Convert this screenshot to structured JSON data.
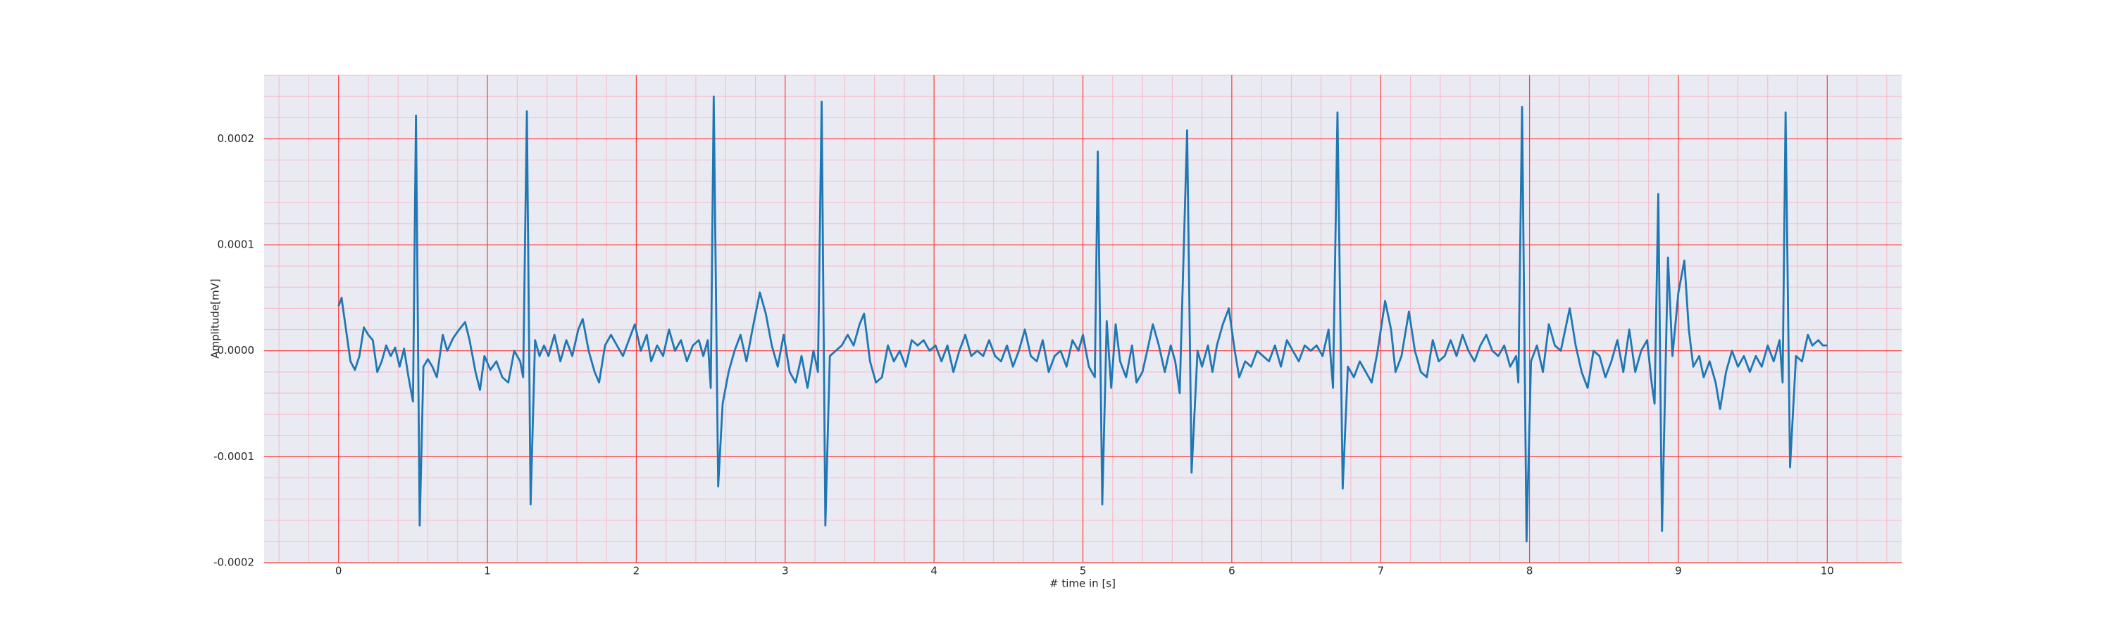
{
  "chart_data": {
    "type": "line",
    "xlabel": "# time in [s]",
    "ylabel": "Amplitude[mV]",
    "color": "#1f77b4",
    "background": "#eaeaf2",
    "grid": true,
    "grid_color": "#ff3b3b",
    "minor_grid": true,
    "minor_grid_color": "#f7b8c6",
    "minor_divisions": 5,
    "xlim": [
      -0.5,
      10.5
    ],
    "xticks": [
      0,
      1,
      2,
      3,
      4,
      5,
      6,
      7,
      8,
      9,
      10
    ],
    "ylim": [
      -0.0002,
      0.00026
    ],
    "yticks": [
      -0.0002,
      -0.0001,
      {
        "value": 0,
        "label": "0.0000"
      },
      0.0001,
      0.0002
    ],
    "x": [
      0,
      0.02,
      0.05,
      0.08,
      0.11,
      0.14,
      0.17,
      0.2,
      0.23,
      0.26,
      0.29,
      0.32,
      0.35,
      0.38,
      0.41,
      0.44,
      0.47,
      0.5,
      0.52,
      0.545,
      0.57,
      0.6,
      0.63,
      0.66,
      0.7,
      0.73,
      0.77,
      0.81,
      0.85,
      0.88,
      0.92,
      0.95,
      0.98,
      1.02,
      1.06,
      1.1,
      1.14,
      1.18,
      1.22,
      1.24,
      1.265,
      1.29,
      1.32,
      1.35,
      1.38,
      1.41,
      1.45,
      1.49,
      1.53,
      1.57,
      1.61,
      1.64,
      1.68,
      1.72,
      1.75,
      1.79,
      1.83,
      1.87,
      1.91,
      1.95,
      1.99,
      2.03,
      2.07,
      2.1,
      2.14,
      2.18,
      2.22,
      2.26,
      2.3,
      2.34,
      2.38,
      2.42,
      2.45,
      2.48,
      2.5,
      2.52,
      2.55,
      2.58,
      2.62,
      2.66,
      2.7,
      2.74,
      2.78,
      2.83,
      2.87,
      2.91,
      2.95,
      2.99,
      3.03,
      3.07,
      3.11,
      3.15,
      3.19,
      3.22,
      3.245,
      3.27,
      3.3,
      3.34,
      3.38,
      3.42,
      3.46,
      3.5,
      3.53,
      3.57,
      3.61,
      3.65,
      3.69,
      3.73,
      3.77,
      3.81,
      3.85,
      3.89,
      3.93,
      3.97,
      4.01,
      4.05,
      4.09,
      4.13,
      4.17,
      4.21,
      4.25,
      4.29,
      4.33,
      4.37,
      4.41,
      4.45,
      4.49,
      4.53,
      4.57,
      4.61,
      4.65,
      4.69,
      4.73,
      4.77,
      4.81,
      4.85,
      4.89,
      4.93,
      4.97,
      5.0,
      5.04,
      5.08,
      5.1,
      5.13,
      5.16,
      5.19,
      5.22,
      5.25,
      5.29,
      5.33,
      5.36,
      5.4,
      5.44,
      5.47,
      5.51,
      5.55,
      5.59,
      5.62,
      5.65,
      5.7,
      5.73,
      5.77,
      5.8,
      5.84,
      5.87,
      5.9,
      5.94,
      5.98,
      6.02,
      6.05,
      6.09,
      6.13,
      6.17,
      6.21,
      6.25,
      6.29,
      6.33,
      6.37,
      6.41,
      6.45,
      6.49,
      6.53,
      6.57,
      6.61,
      6.65,
      6.68,
      6.71,
      6.745,
      6.78,
      6.82,
      6.86,
      6.9,
      6.94,
      6.98,
      7.03,
      7.07,
      7.1,
      7.14,
      7.19,
      7.23,
      7.27,
      7.31,
      7.35,
      7.39,
      7.43,
      7.47,
      7.51,
      7.55,
      7.59,
      7.63,
      7.67,
      7.71,
      7.75,
      7.79,
      7.83,
      7.87,
      7.91,
      7.925,
      7.95,
      7.98,
      8.01,
      8.05,
      8.09,
      8.13,
      8.17,
      8.21,
      8.24,
      8.27,
      8.31,
      8.35,
      8.39,
      8.43,
      8.47,
      8.51,
      8.55,
      8.59,
      8.63,
      8.67,
      8.71,
      8.75,
      8.79,
      8.82,
      8.84,
      8.865,
      8.89,
      8.93,
      8.96,
      9.0,
      9.04,
      9.07,
      9.1,
      9.14,
      9.17,
      9.21,
      9.25,
      9.28,
      9.32,
      9.36,
      9.4,
      9.44,
      9.48,
      9.52,
      9.56,
      9.6,
      9.64,
      9.68,
      9.7,
      9.72,
      9.75,
      9.79,
      9.83,
      9.87,
      9.9,
      9.94,
      9.97,
      10.0
    ],
    "values": [
      4.2e-05,
      5e-05,
      2e-05,
      -1e-05,
      -1.8e-05,
      -5e-06,
      2.2e-05,
      1.5e-05,
      1e-05,
      -2e-05,
      -1e-05,
      5e-06,
      -5e-06,
      3e-06,
      -1.5e-05,
      2e-06,
      -2.5e-05,
      -4.8e-05,
      0.000222,
      -0.000165,
      -1.5e-05,
      -8e-06,
      -1.5e-05,
      -2.5e-05,
      1.5e-05,
      0,
      1.2e-05,
      2e-05,
      2.7e-05,
      1e-05,
      -2e-05,
      -3.7e-05,
      -5e-06,
      -1.8e-05,
      -1e-05,
      -2.5e-05,
      -3e-05,
      0,
      -1e-05,
      -2.5e-05,
      0.000226,
      -0.000145,
      1e-05,
      -5e-06,
      5e-06,
      -5e-06,
      1.5e-05,
      -1e-05,
      1e-05,
      -5e-06,
      2e-05,
      3e-05,
      0,
      -2e-05,
      -3e-05,
      5e-06,
      1.5e-05,
      5e-06,
      -5e-06,
      1e-05,
      2.5e-05,
      0,
      1.5e-05,
      -1e-05,
      5e-06,
      -5e-06,
      2e-05,
      0,
      1e-05,
      -1e-05,
      5e-06,
      1e-05,
      -5e-06,
      1e-05,
      -3.5e-05,
      0.00024,
      -0.000128,
      -5e-05,
      -2e-05,
      0,
      1.5e-05,
      -1e-05,
      2e-05,
      5.5e-05,
      3.5e-05,
      5e-06,
      -1.5e-05,
      1.5e-05,
      -2e-05,
      -3e-05,
      -5e-06,
      -3.5e-05,
      0,
      -2e-05,
      0.000235,
      -0.000165,
      -5e-06,
      0,
      5e-06,
      1.5e-05,
      5e-06,
      2.5e-05,
      3.5e-05,
      -1e-05,
      -3e-05,
      -2.5e-05,
      5e-06,
      -1e-05,
      0,
      -1.5e-05,
      1e-05,
      5e-06,
      1e-05,
      0,
      5e-06,
      -1e-05,
      5e-06,
      -2e-05,
      0,
      1.5e-05,
      -5e-06,
      0,
      -5e-06,
      1e-05,
      -5e-06,
      -1e-05,
      5e-06,
      -1.5e-05,
      0,
      2e-05,
      -5e-06,
      -1e-05,
      1e-05,
      -2e-05,
      -5e-06,
      0,
      -1.5e-05,
      1e-05,
      0,
      1.5e-05,
      -1.5e-05,
      -2.5e-05,
      0.000188,
      -0.000145,
      2.8e-05,
      -3.5e-05,
      2.5e-05,
      -1e-05,
      -2.5e-05,
      5e-06,
      -3e-05,
      -2e-05,
      5e-06,
      2.5e-05,
      5e-06,
      -2e-05,
      5e-06,
      -1e-05,
      -4e-05,
      0.000208,
      -0.000115,
      0,
      -1.5e-05,
      5e-06,
      -2e-05,
      5e-06,
      2.5e-05,
      4e-05,
      0,
      -2.5e-05,
      -1e-05,
      -1.5e-05,
      0,
      -5e-06,
      -1e-05,
      5e-06,
      -1.5e-05,
      1e-05,
      0,
      -1e-05,
      5e-06,
      0,
      5e-06,
      -5e-06,
      2e-05,
      -3.5e-05,
      0.000225,
      -0.00013,
      -1.5e-05,
      -2.5e-05,
      -1e-05,
      -2e-05,
      -3e-05,
      0,
      4.7e-05,
      2e-05,
      -2e-05,
      -5e-06,
      3.7e-05,
      0,
      -2e-05,
      -2.5e-05,
      1e-05,
      -1e-05,
      -5e-06,
      1e-05,
      -5e-06,
      1.5e-05,
      0,
      -1e-05,
      5e-06,
      1.5e-05,
      0,
      -5e-06,
      5e-06,
      -1.5e-05,
      -5e-06,
      -3e-05,
      0.00023,
      -0.00018,
      -1e-05,
      5e-06,
      -2e-05,
      2.5e-05,
      5e-06,
      0,
      2e-05,
      4e-05,
      5e-06,
      -2e-05,
      -3.5e-05,
      0,
      -5e-06,
      -2.5e-05,
      -1e-05,
      1e-05,
      -2e-05,
      2e-05,
      -2e-05,
      0,
      1e-05,
      -3e-05,
      -5e-05,
      0.000148,
      -0.00017,
      8.8e-05,
      -5e-06,
      5.5e-05,
      8.5e-05,
      2e-05,
      -1.5e-05,
      -5e-06,
      -2.5e-05,
      -1e-05,
      -3e-05,
      -5.5e-05,
      -2e-05,
      0,
      -1.5e-05,
      -5e-06,
      -2e-05,
      -5e-06,
      -1.5e-05,
      5e-06,
      -1e-05,
      1e-05,
      -3e-05,
      0.000225,
      -0.00011,
      -5e-06,
      -1e-05,
      1.5e-05,
      5e-06,
      1e-05,
      5e-06,
      5e-06
    ]
  }
}
